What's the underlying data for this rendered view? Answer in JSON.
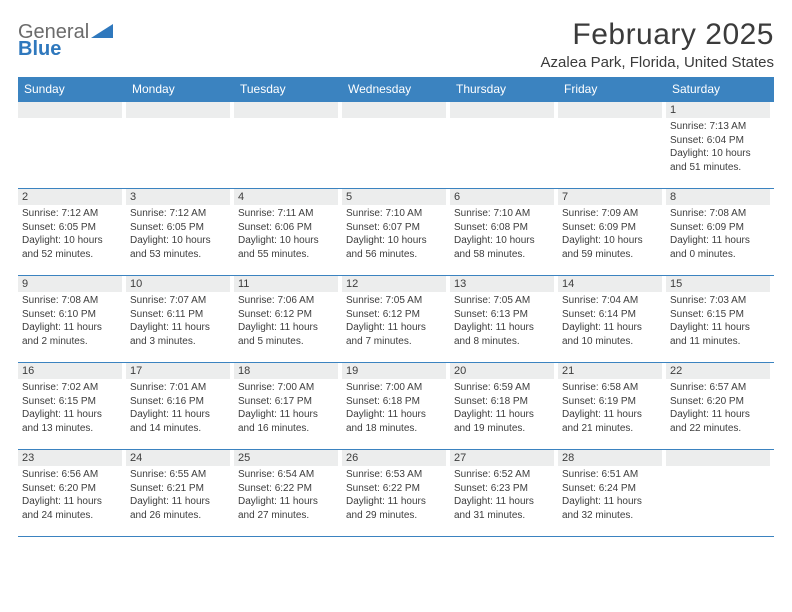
{
  "logo": {
    "text1": "General",
    "text2": "Blue",
    "gray_color": "#6b6b6b",
    "blue_color": "#2f78bd"
  },
  "title": "February 2025",
  "location": "Azalea Park, Florida, United States",
  "colors": {
    "header_bg": "#3b83c0",
    "header_text": "#ffffff",
    "daynum_bg": "#eceded",
    "border": "#3b83c0",
    "body_text": "#3d3d3d",
    "title_text": "#3b3b3b"
  },
  "day_headers": [
    "Sunday",
    "Monday",
    "Tuesday",
    "Wednesday",
    "Thursday",
    "Friday",
    "Saturday"
  ],
  "weeks": [
    [
      {
        "day": "",
        "sunrise": "",
        "sunset": "",
        "daylight": ""
      },
      {
        "day": "",
        "sunrise": "",
        "sunset": "",
        "daylight": ""
      },
      {
        "day": "",
        "sunrise": "",
        "sunset": "",
        "daylight": ""
      },
      {
        "day": "",
        "sunrise": "",
        "sunset": "",
        "daylight": ""
      },
      {
        "day": "",
        "sunrise": "",
        "sunset": "",
        "daylight": ""
      },
      {
        "day": "",
        "sunrise": "",
        "sunset": "",
        "daylight": ""
      },
      {
        "day": "1",
        "sunrise": "Sunrise: 7:13 AM",
        "sunset": "Sunset: 6:04 PM",
        "daylight": "Daylight: 10 hours and 51 minutes."
      }
    ],
    [
      {
        "day": "2",
        "sunrise": "Sunrise: 7:12 AM",
        "sunset": "Sunset: 6:05 PM",
        "daylight": "Daylight: 10 hours and 52 minutes."
      },
      {
        "day": "3",
        "sunrise": "Sunrise: 7:12 AM",
        "sunset": "Sunset: 6:05 PM",
        "daylight": "Daylight: 10 hours and 53 minutes."
      },
      {
        "day": "4",
        "sunrise": "Sunrise: 7:11 AM",
        "sunset": "Sunset: 6:06 PM",
        "daylight": "Daylight: 10 hours and 55 minutes."
      },
      {
        "day": "5",
        "sunrise": "Sunrise: 7:10 AM",
        "sunset": "Sunset: 6:07 PM",
        "daylight": "Daylight: 10 hours and 56 minutes."
      },
      {
        "day": "6",
        "sunrise": "Sunrise: 7:10 AM",
        "sunset": "Sunset: 6:08 PM",
        "daylight": "Daylight: 10 hours and 58 minutes."
      },
      {
        "day": "7",
        "sunrise": "Sunrise: 7:09 AM",
        "sunset": "Sunset: 6:09 PM",
        "daylight": "Daylight: 10 hours and 59 minutes."
      },
      {
        "day": "8",
        "sunrise": "Sunrise: 7:08 AM",
        "sunset": "Sunset: 6:09 PM",
        "daylight": "Daylight: 11 hours and 0 minutes."
      }
    ],
    [
      {
        "day": "9",
        "sunrise": "Sunrise: 7:08 AM",
        "sunset": "Sunset: 6:10 PM",
        "daylight": "Daylight: 11 hours and 2 minutes."
      },
      {
        "day": "10",
        "sunrise": "Sunrise: 7:07 AM",
        "sunset": "Sunset: 6:11 PM",
        "daylight": "Daylight: 11 hours and 3 minutes."
      },
      {
        "day": "11",
        "sunrise": "Sunrise: 7:06 AM",
        "sunset": "Sunset: 6:12 PM",
        "daylight": "Daylight: 11 hours and 5 minutes."
      },
      {
        "day": "12",
        "sunrise": "Sunrise: 7:05 AM",
        "sunset": "Sunset: 6:12 PM",
        "daylight": "Daylight: 11 hours and 7 minutes."
      },
      {
        "day": "13",
        "sunrise": "Sunrise: 7:05 AM",
        "sunset": "Sunset: 6:13 PM",
        "daylight": "Daylight: 11 hours and 8 minutes."
      },
      {
        "day": "14",
        "sunrise": "Sunrise: 7:04 AM",
        "sunset": "Sunset: 6:14 PM",
        "daylight": "Daylight: 11 hours and 10 minutes."
      },
      {
        "day": "15",
        "sunrise": "Sunrise: 7:03 AM",
        "sunset": "Sunset: 6:15 PM",
        "daylight": "Daylight: 11 hours and 11 minutes."
      }
    ],
    [
      {
        "day": "16",
        "sunrise": "Sunrise: 7:02 AM",
        "sunset": "Sunset: 6:15 PM",
        "daylight": "Daylight: 11 hours and 13 minutes."
      },
      {
        "day": "17",
        "sunrise": "Sunrise: 7:01 AM",
        "sunset": "Sunset: 6:16 PM",
        "daylight": "Daylight: 11 hours and 14 minutes."
      },
      {
        "day": "18",
        "sunrise": "Sunrise: 7:00 AM",
        "sunset": "Sunset: 6:17 PM",
        "daylight": "Daylight: 11 hours and 16 minutes."
      },
      {
        "day": "19",
        "sunrise": "Sunrise: 7:00 AM",
        "sunset": "Sunset: 6:18 PM",
        "daylight": "Daylight: 11 hours and 18 minutes."
      },
      {
        "day": "20",
        "sunrise": "Sunrise: 6:59 AM",
        "sunset": "Sunset: 6:18 PM",
        "daylight": "Daylight: 11 hours and 19 minutes."
      },
      {
        "day": "21",
        "sunrise": "Sunrise: 6:58 AM",
        "sunset": "Sunset: 6:19 PM",
        "daylight": "Daylight: 11 hours and 21 minutes."
      },
      {
        "day": "22",
        "sunrise": "Sunrise: 6:57 AM",
        "sunset": "Sunset: 6:20 PM",
        "daylight": "Daylight: 11 hours and 22 minutes."
      }
    ],
    [
      {
        "day": "23",
        "sunrise": "Sunrise: 6:56 AM",
        "sunset": "Sunset: 6:20 PM",
        "daylight": "Daylight: 11 hours and 24 minutes."
      },
      {
        "day": "24",
        "sunrise": "Sunrise: 6:55 AM",
        "sunset": "Sunset: 6:21 PM",
        "daylight": "Daylight: 11 hours and 26 minutes."
      },
      {
        "day": "25",
        "sunrise": "Sunrise: 6:54 AM",
        "sunset": "Sunset: 6:22 PM",
        "daylight": "Daylight: 11 hours and 27 minutes."
      },
      {
        "day": "26",
        "sunrise": "Sunrise: 6:53 AM",
        "sunset": "Sunset: 6:22 PM",
        "daylight": "Daylight: 11 hours and 29 minutes."
      },
      {
        "day": "27",
        "sunrise": "Sunrise: 6:52 AM",
        "sunset": "Sunset: 6:23 PM",
        "daylight": "Daylight: 11 hours and 31 minutes."
      },
      {
        "day": "28",
        "sunrise": "Sunrise: 6:51 AM",
        "sunset": "Sunset: 6:24 PM",
        "daylight": "Daylight: 11 hours and 32 minutes."
      },
      {
        "day": "",
        "sunrise": "",
        "sunset": "",
        "daylight": ""
      }
    ]
  ]
}
